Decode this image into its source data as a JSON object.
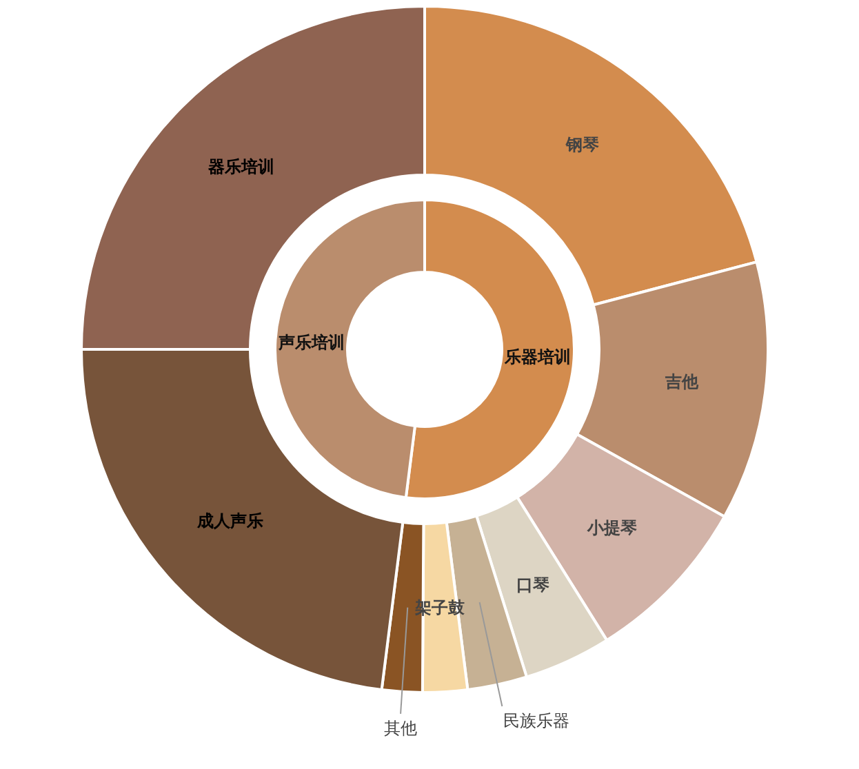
{
  "chart_data": [
    {
      "type": "donut",
      "categories": [
        "乐器培训",
        "声乐培训"
      ],
      "values": [
        52,
        48
      ],
      "colors": [
        "#d38c4e",
        "#ba8d6d"
      ]
    },
    {
      "type": "donut",
      "categories": [
        "钢琴",
        "吉他",
        "小提琴",
        "口琴",
        "民族乐器",
        "架子鼓",
        "其他",
        "成人声乐",
        "器乐培训"
      ],
      "values": [
        20.9,
        12.2,
        8.0,
        4.1,
        2.8,
        2.1,
        1.9,
        23.0,
        25.0
      ],
      "colors": [
        "#d38c4e",
        "#ba8d6d",
        "#d2b3a8",
        "#ddd5c4",
        "#c6b194",
        "#f6d8a3",
        "#8a5424",
        "#77543a",
        "#8f6351"
      ]
    }
  ]
}
